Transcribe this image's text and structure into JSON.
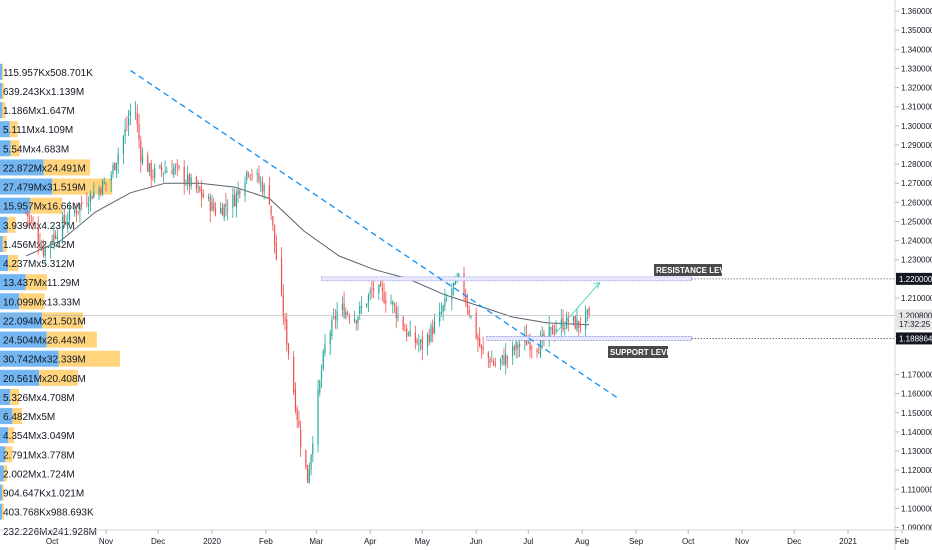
{
  "chart_data": {
    "type": "candlestick",
    "symbol_pair_scale": "price",
    "ylim": [
      1.0887,
      1.3658
    ],
    "y_ticks": [
      {
        "label": "1.360000",
        "value": 1.36
      },
      {
        "label": "1.350000",
        "value": 1.35
      },
      {
        "label": "1.340000",
        "value": 1.34
      },
      {
        "label": "1.330000",
        "value": 1.33
      },
      {
        "label": "1.320000",
        "value": 1.32
      },
      {
        "label": "1.310000",
        "value": 1.31
      },
      {
        "label": "1.300000",
        "value": 1.3
      },
      {
        "label": "1.290000",
        "value": 1.29
      },
      {
        "label": "1.280000",
        "value": 1.28
      },
      {
        "label": "1.270000",
        "value": 1.27
      },
      {
        "label": "1.260000",
        "value": 1.26
      },
      {
        "label": "1.250000",
        "value": 1.25
      },
      {
        "label": "1.240000",
        "value": 1.24
      },
      {
        "label": "1.230000",
        "value": 1.23
      },
      {
        "label": "1.210000",
        "value": 1.21
      },
      {
        "label": "1.190000",
        "value": 1.19
      },
      {
        "label": "1.170000",
        "value": 1.17
      },
      {
        "label": "1.160000",
        "value": 1.16
      },
      {
        "label": "1.150000",
        "value": 1.15
      },
      {
        "label": "1.140000",
        "value": 1.14
      },
      {
        "label": "1.130000",
        "value": 1.13
      },
      {
        "label": "1.120000",
        "value": 1.12
      },
      {
        "label": "1.110000",
        "value": 1.11
      },
      {
        "label": "1.100000",
        "value": 1.1
      },
      {
        "label": "1.090000",
        "value": 1.09
      }
    ],
    "x_ticks": [
      "Oct",
      "Nov",
      "Dec",
      "2020",
      "Feb",
      "Mar",
      "Apr",
      "May",
      "Jun",
      "Jul",
      "Aug",
      "Sep",
      "Oct",
      "Nov",
      "Dec",
      "2021",
      "Feb"
    ],
    "x_range_days": [
      -15,
      500
    ],
    "x_axis_start": "2019-09-16",
    "price_tags": [
      {
        "label": "1.220000",
        "value": 1.22,
        "style": "resistance"
      },
      {
        "label": "1.200800",
        "value": 1.2008,
        "style": "current"
      },
      {
        "label": "17:32:25",
        "value": 1.1965,
        "style": "countdown"
      },
      {
        "label": "1.188864",
        "value": 1.188864,
        "style": "support"
      }
    ],
    "annotations": {
      "resistance_label": "RESISTANCE LEVEL",
      "support_label": "SUPPORT LEVEL",
      "resistance_value": 1.22,
      "support_value": 1.188864,
      "trendline": {
        "start_day": 60,
        "start_value": 1.329,
        "end_day": 340,
        "end_value": 1.158
      }
    },
    "volume_profile": [
      {
        "label": "115.957Kx508.701K",
        "price": 1.328,
        "buy": 115957,
        "sell": 508701
      },
      {
        "label": "639.243Kx1.139M",
        "price": 1.318,
        "buy": 639243,
        "sell": 1139000
      },
      {
        "label": "1.186Mx1.647M",
        "price": 1.308,
        "buy": 1186000,
        "sell": 1647000
      },
      {
        "label": "5.111Mx4.109M",
        "price": 1.298,
        "buy": 5111000,
        "sell": 4109000
      },
      {
        "label": "5.54Mx4.683M",
        "price": 1.288,
        "buy": 5540000,
        "sell": 4683000
      },
      {
        "label": "22.872Mx24.491M",
        "price": 1.278,
        "buy": 22872000,
        "sell": 24491000
      },
      {
        "label": "27.479Mx31.519M",
        "price": 1.268,
        "buy": 27479000,
        "sell": 31519000
      },
      {
        "label": "15.957Mx16.66M",
        "price": 1.258,
        "buy": 15957000,
        "sell": 16660000
      },
      {
        "label": "3.939Mx4.237M",
        "price": 1.248,
        "buy": 3939000,
        "sell": 4237000
      },
      {
        "label": "1.456Mx2.042M",
        "price": 1.238,
        "buy": 1456000,
        "sell": 2042000
      },
      {
        "label": "4.237Mx5.312M",
        "price": 1.228,
        "buy": 4237000,
        "sell": 5312000
      },
      {
        "label": "13.437Mx11.29M",
        "price": 1.218,
        "buy": 13437000,
        "sell": 11290000
      },
      {
        "label": "10.099Mx13.33M",
        "price": 1.208,
        "buy": 10099000,
        "sell": 13330000
      },
      {
        "label": "22.094Mx21.501M",
        "price": 1.198,
        "buy": 22094000,
        "sell": 21501000
      },
      {
        "label": "24.504Mx26.443M",
        "price": 1.188,
        "buy": 24504000,
        "sell": 26443000
      },
      {
        "label": "30.742Mx32.339M",
        "price": 1.178,
        "buy": 30742000,
        "sell": 32339000
      },
      {
        "label": "20.561Mx20.408M",
        "price": 1.168,
        "buy": 20561000,
        "sell": 20408000
      },
      {
        "label": "5.326Mx4.708M",
        "price": 1.158,
        "buy": 5326000,
        "sell": 4708000
      },
      {
        "label": "6.482Mx5M",
        "price": 1.148,
        "buy": 6482000,
        "sell": 5000000
      },
      {
        "label": "4.354Mx3.049M",
        "price": 1.138,
        "buy": 4354000,
        "sell": 3049000
      },
      {
        "label": "2.791Mx3.778M",
        "price": 1.128,
        "buy": 2791000,
        "sell": 3778000
      },
      {
        "label": "2.002Mx1.724M",
        "price": 1.118,
        "buy": 2002000,
        "sell": 1724000
      },
      {
        "label": "904.647Kx1.021M",
        "price": 1.108,
        "buy": 904647,
        "sell": 1021000
      },
      {
        "label": "403.768Kx988.693K",
        "price": 1.098,
        "buy": 403768,
        "sell": 988693
      },
      {
        "label": "232.226Mx241.928M",
        "price": 1.088,
        "buy": 232226000,
        "sell": 241928000
      }
    ],
    "close_series_key_points": [
      {
        "day": 0,
        "close": 1.255
      },
      {
        "day": 10,
        "close": 1.235
      },
      {
        "day": 20,
        "close": 1.248
      },
      {
        "day": 35,
        "close": 1.262
      },
      {
        "day": 48,
        "close": 1.272
      },
      {
        "day": 58,
        "close": 1.3
      },
      {
        "day": 62,
        "close": 1.315
      },
      {
        "day": 66,
        "close": 1.285
      },
      {
        "day": 72,
        "close": 1.275
      },
      {
        "day": 85,
        "close": 1.278
      },
      {
        "day": 100,
        "close": 1.265
      },
      {
        "day": 110,
        "close": 1.255
      },
      {
        "day": 120,
        "close": 1.262
      },
      {
        "day": 128,
        "close": 1.278
      },
      {
        "day": 135,
        "close": 1.27
      },
      {
        "day": 140,
        "close": 1.262
      },
      {
        "day": 146,
        "close": 1.215
      },
      {
        "day": 152,
        "close": 1.175
      },
      {
        "day": 158,
        "close": 1.135
      },
      {
        "day": 162,
        "close": 1.115
      },
      {
        "day": 166,
        "close": 1.145
      },
      {
        "day": 172,
        "close": 1.185
      },
      {
        "day": 180,
        "close": 1.205
      },
      {
        "day": 190,
        "close": 1.2
      },
      {
        "day": 200,
        "close": 1.215
      },
      {
        "day": 210,
        "close": 1.208
      },
      {
        "day": 220,
        "close": 1.19
      },
      {
        "day": 228,
        "close": 1.185
      },
      {
        "day": 238,
        "close": 1.2
      },
      {
        "day": 245,
        "close": 1.215
      },
      {
        "day": 250,
        "close": 1.22
      },
      {
        "day": 256,
        "close": 1.2
      },
      {
        "day": 262,
        "close": 1.182
      },
      {
        "day": 270,
        "close": 1.175
      },
      {
        "day": 278,
        "close": 1.18
      },
      {
        "day": 286,
        "close": 1.188
      },
      {
        "day": 295,
        "close": 1.185
      },
      {
        "day": 305,
        "close": 1.195
      },
      {
        "day": 312,
        "close": 1.198
      },
      {
        "day": 318,
        "close": 1.196
      },
      {
        "day": 324,
        "close": 1.201
      }
    ],
    "moving_average_key_points": [
      {
        "day": 0,
        "value": 1.232
      },
      {
        "day": 20,
        "value": 1.24
      },
      {
        "day": 40,
        "value": 1.255
      },
      {
        "day": 60,
        "value": 1.265
      },
      {
        "day": 80,
        "value": 1.27
      },
      {
        "day": 100,
        "value": 1.27
      },
      {
        "day": 120,
        "value": 1.268
      },
      {
        "day": 140,
        "value": 1.262
      },
      {
        "day": 160,
        "value": 1.245
      },
      {
        "day": 180,
        "value": 1.232
      },
      {
        "day": 200,
        "value": 1.225
      },
      {
        "day": 220,
        "value": 1.22
      },
      {
        "day": 240,
        "value": 1.212
      },
      {
        "day": 260,
        "value": 1.206
      },
      {
        "day": 280,
        "value": 1.2
      },
      {
        "day": 300,
        "value": 1.197
      },
      {
        "day": 324,
        "value": 1.196
      }
    ],
    "colors": {
      "up": "#26a69a",
      "down": "#ef5350",
      "trendline": "#2196f3",
      "ma": "#5d606b",
      "vp_buy": "#5aa9f0",
      "vp_sell": "#ffcc66",
      "label_bg": "#4a4a4a",
      "current_tag": "#e6e6e6"
    }
  }
}
